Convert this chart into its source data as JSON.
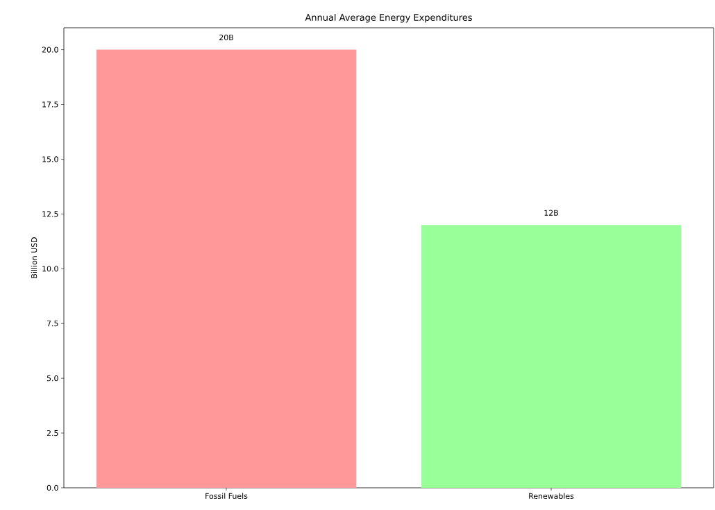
{
  "chart_data": {
    "type": "bar",
    "title": "Annual Average Energy Expenditures",
    "ylabel": "Billion USD",
    "categories": [
      "Fossil Fuels",
      "Renewables"
    ],
    "values": [
      20,
      12
    ],
    "colors": [
      "#ff9999",
      "#99ff99"
    ],
    "value_labels": [
      "20B",
      "12B"
    ],
    "yticks": [
      {
        "value": 0,
        "label": "0.0"
      },
      {
        "value": 2.5,
        "label": "2.5"
      },
      {
        "value": 5,
        "label": "5.0"
      },
      {
        "value": 7.5,
        "label": "7.5"
      },
      {
        "value": 10,
        "label": "10.0"
      },
      {
        "value": 12.5,
        "label": "12.5"
      },
      {
        "value": 15,
        "label": "15.0"
      },
      {
        "value": 17.5,
        "label": "17.5"
      },
      {
        "value": 20,
        "label": "20.0"
      }
    ],
    "ylim": [
      0,
      21
    ]
  }
}
